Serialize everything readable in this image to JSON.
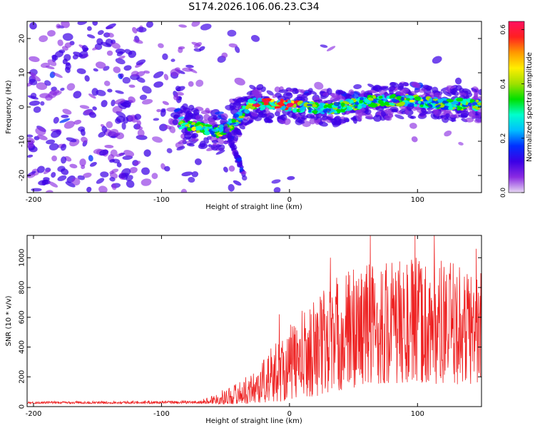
{
  "title": "S174.2026.106.06.23.C34",
  "chart_data": [
    {
      "type": "heatmap",
      "xlabel": "Height of straight line (km)",
      "ylabel": "Frequency (Hz)",
      "xlim": [
        -205,
        150
      ],
      "ylim": [
        -25,
        25
      ],
      "xticks": [
        -200,
        -100,
        0,
        100
      ],
      "yticks": [
        -20,
        -10,
        0,
        10,
        20
      ],
      "colorbar": {
        "label": "Normalized spectral amplitude",
        "range": [
          0.0,
          0.63
        ],
        "ticks": [
          "0.0",
          "0.2",
          "0.4",
          "0.6"
        ],
        "colors": [
          "#e6d8f2",
          "#8a2be2",
          "#3b00e6",
          "#0030ff",
          "#00bfff",
          "#00ffcc",
          "#00e000",
          "#a0e000",
          "#ffee00",
          "#ff9900",
          "#ff2020",
          "#ff1060"
        ]
      },
      "ridge": [
        {
          "x": -85,
          "f": -4.5
        },
        {
          "x": -70,
          "f": -6.0
        },
        {
          "x": -55,
          "f": -7.5
        },
        {
          "x": -42,
          "f": -4.0
        },
        {
          "x": -30,
          "f": 1.0
        },
        {
          "x": 0,
          "f": 0.5
        },
        {
          "x": 30,
          "f": -0.5
        },
        {
          "x": 60,
          "f": 1.5
        },
        {
          "x": 90,
          "f": 2.0
        },
        {
          "x": 120,
          "f": 1.0
        },
        {
          "x": 150,
          "f": 0.5
        }
      ]
    },
    {
      "type": "line",
      "xlabel": "Height of straight line (km)",
      "ylabel": "SNR (10 * v/v)",
      "xlim": [
        -205,
        150
      ],
      "ylim": [
        0,
        1150
      ],
      "xticks": [
        -200,
        -100,
        0,
        100
      ],
      "yticks": [
        0,
        200,
        400,
        600,
        800,
        1000
      ],
      "color": "#ee2222",
      "envelope": [
        {
          "x": -205,
          "lo": 20,
          "hi": 35
        },
        {
          "x": -70,
          "lo": 20,
          "hi": 40
        },
        {
          "x": -50,
          "lo": 15,
          "hi": 120
        },
        {
          "x": -30,
          "lo": 20,
          "hi": 220
        },
        {
          "x": -10,
          "lo": 30,
          "hi": 450
        },
        {
          "x": 10,
          "lo": 60,
          "hi": 650
        },
        {
          "x": 30,
          "lo": 80,
          "hi": 850
        },
        {
          "x": 60,
          "lo": 150,
          "hi": 1000
        },
        {
          "x": 100,
          "lo": 150,
          "hi": 1000
        },
        {
          "x": 150,
          "lo": 150,
          "hi": 950
        }
      ],
      "peaks": [
        {
          "x": 63,
          "y": 1150
        },
        {
          "x": 98,
          "y": 1150
        },
        {
          "x": 113,
          "y": 1150
        },
        {
          "x": 146,
          "y": 1060
        },
        {
          "x": 32,
          "y": 1000
        },
        {
          "x": 50,
          "y": 920
        },
        {
          "x": -8,
          "y": 620
        }
      ]
    }
  ]
}
